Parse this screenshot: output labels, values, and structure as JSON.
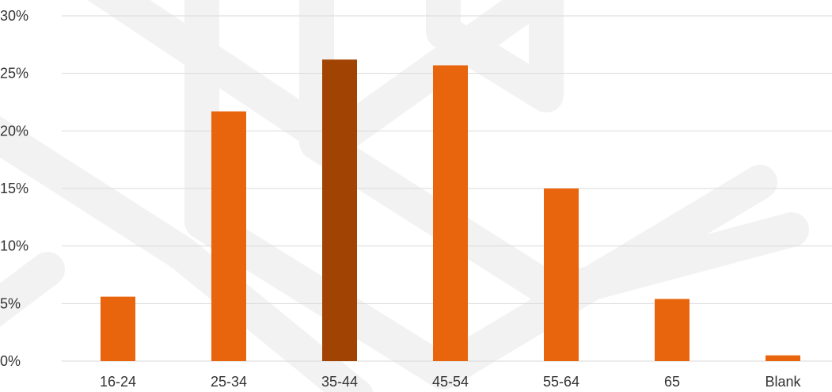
{
  "chart_data": {
    "type": "bar",
    "categories": [
      "16-24",
      "25-34",
      "35-44",
      "45-54",
      "55-64",
      "65",
      "Blank"
    ],
    "values": [
      5.6,
      21.7,
      26.2,
      25.7,
      15.0,
      5.4,
      0.5
    ],
    "highlight_index": 2,
    "title": "",
    "xlabel": "",
    "ylabel": "",
    "ylim": [
      0,
      30
    ],
    "y_ticks": [
      0,
      5,
      10,
      15,
      20,
      25,
      30
    ],
    "y_tick_labels": [
      "0%",
      "5%",
      "10%",
      "15%",
      "20%",
      "25%",
      "30%"
    ],
    "grid": "horizontal",
    "legend": "none",
    "colors": {
      "bar": "#E8650E",
      "bar_highlight": "#A14303",
      "grid": "#D9D9D9",
      "tick_text": "#333333",
      "watermark": "#F2F2F2"
    }
  }
}
